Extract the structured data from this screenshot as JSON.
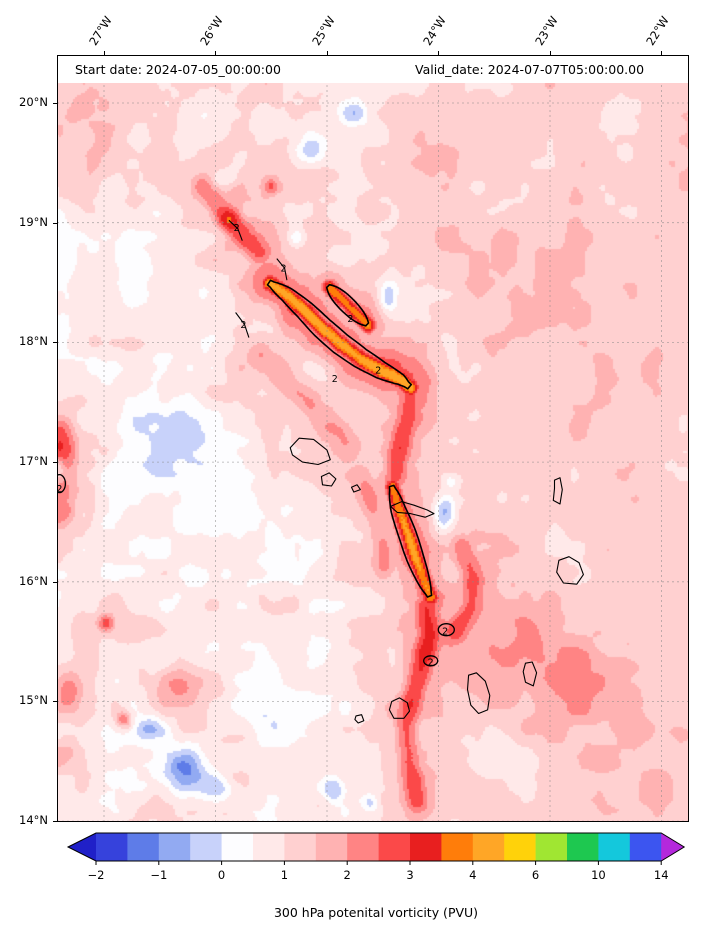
{
  "header": {
    "start_date": "Start date: 2024-07-05_00:00:00",
    "valid_date": "Valid_date: 2024-07-07T05:00:00.00"
  },
  "colorbar_label": "300 hPa potenital vorticity (PVU)",
  "axes": {
    "lon_ticks": [
      {
        "label": "27°W",
        "value": 27
      },
      {
        "label": "26°W",
        "value": 26
      },
      {
        "label": "25°W",
        "value": 25
      },
      {
        "label": "24°W",
        "value": 24
      },
      {
        "label": "23°W",
        "value": 23
      },
      {
        "label": "22°W",
        "value": 22
      }
    ],
    "lat_ticks": [
      {
        "label": "20°N",
        "value": 20
      },
      {
        "label": "19°N",
        "value": 19
      },
      {
        "label": "18°N",
        "value": 18
      },
      {
        "label": "17°N",
        "value": 17
      },
      {
        "label": "16°N",
        "value": 16
      },
      {
        "label": "15°N",
        "value": 15
      },
      {
        "label": "14°N",
        "value": 14
      }
    ]
  },
  "chart_data": {
    "type": "heatmap",
    "title": "300 hPa potential vorticity field over the Cape Verde region",
    "annotations": [
      "Start date: 2024-07-05_00:00:00",
      "Valid_date: 2024-07-07T05:00:00.00"
    ],
    "x_ticks": [
      "27°W",
      "26°W",
      "25°W",
      "24°W",
      "23°W",
      "22°W"
    ],
    "y_ticks": [
      "20°N",
      "19°N",
      "18°N",
      "17°N",
      "16°N",
      "15°N",
      "14°N"
    ],
    "extent": {
      "lon_west": 27.4215,
      "lon_east": 21.754,
      "lat_north": 20.401,
      "lat_south": 13.994
    },
    "grid": "dashed",
    "colorbar": {
      "label": "300 hPa potenital vorticity (PVU)",
      "tick_labels": [
        "−2",
        "−1",
        "0",
        "1",
        "2",
        "3",
        "4",
        "6",
        "10",
        "14"
      ],
      "tick_values": [
        -2,
        -1,
        0,
        1,
        2,
        3,
        4,
        6,
        10,
        14
      ],
      "tick_index": [
        0,
        2,
        4,
        6,
        8,
        10,
        12,
        14,
        16,
        18
      ],
      "levels": [
        -2,
        -1.5,
        -1,
        -0.5,
        0,
        0.5,
        1,
        1.5,
        2,
        2.5,
        3,
        3.5,
        4,
        5,
        6,
        8,
        10,
        12,
        14
      ],
      "colors": [
        "#3642dc",
        "#5e7ce8",
        "#92aaf2",
        "#c8d2fa",
        "#fdfdff",
        "#ffe9e9",
        "#ffd0d0",
        "#ffb2b2",
        "#ff8484",
        "#fb4949",
        "#e81f1f",
        "#ff7d0a",
        "#ffa626",
        "#ffd20a",
        "#a0e632",
        "#1ec850",
        "#14c8dc",
        "#3c55f0"
      ],
      "under_color": "#2020c8",
      "over_color": "#b428dc"
    },
    "field": {
      "units": "PVU",
      "base": {
        "offset": 0.7,
        "east_gradient": 0.45,
        "north_gradient": 0.12
      },
      "noise": {
        "east_damping": 0.45,
        "octaves": [
          {
            "scale": 26,
            "amp": 0.42,
            "seed": 7
          },
          {
            "scale": 64,
            "amp": 0.3,
            "seed": 13
          },
          {
            "scale": 12,
            "amp": 0.18,
            "seed": 29
          }
        ]
      },
      "blobs": [
        [
          25.51,
          19.31,
          1.6,
          0.05,
          0.05
        ],
        [
          25.9,
          19.05,
          1.2,
          0.07,
          0.07
        ],
        [
          25.15,
          19.6,
          -1.5,
          0.1,
          0.08
        ],
        [
          24.75,
          19.92,
          -1.3,
          0.09,
          0.07
        ],
        [
          25.92,
          19.38,
          -1.1,
          0.08,
          0.06
        ],
        [
          24.46,
          18.38,
          -1.4,
          0.06,
          0.09
        ],
        [
          23.95,
          16.6,
          -1.8,
          0.07,
          0.1
        ],
        [
          23.9,
          16.85,
          -0.9,
          0.06,
          0.05
        ],
        [
          26.3,
          14.45,
          -1.7,
          0.16,
          0.12
        ],
        [
          26.0,
          14.28,
          -1.3,
          0.1,
          0.08
        ],
        [
          26.6,
          14.78,
          -1.1,
          0.09,
          0.07
        ],
        [
          24.95,
          14.28,
          -1.5,
          0.07,
          0.07
        ],
        [
          24.62,
          14.15,
          -1.1,
          0.06,
          0.06
        ],
        [
          27.42,
          16.95,
          -0.8,
          0.04,
          0.06
        ],
        [
          26.99,
          15.66,
          1.6,
          0.05,
          0.05
        ],
        [
          26.83,
          14.86,
          1.8,
          0.05,
          0.05
        ],
        [
          27.35,
          15.05,
          1.5,
          0.12,
          0.15
        ],
        [
          27.4,
          14.55,
          1.0,
          0.12,
          0.12
        ],
        [
          26.3,
          17.2,
          -0.55,
          0.45,
          0.4
        ],
        [
          25.6,
          16.3,
          -0.5,
          0.4,
          0.35
        ],
        [
          26.8,
          18.6,
          -0.35,
          0.35,
          0.45
        ],
        [
          22.6,
          17.6,
          0.25,
          0.6,
          0.8
        ],
        [
          23.3,
          15.45,
          0.9,
          0.45,
          0.35
        ],
        [
          22.55,
          15.15,
          0.7,
          0.35,
          0.3
        ],
        [
          25.4,
          14.9,
          -0.5,
          0.3,
          0.25
        ],
        [
          26.35,
          15.15,
          1.2,
          0.14,
          0.1
        ],
        [
          26.9,
          19.9,
          0.5,
          0.4,
          0.3
        ],
        [
          27.2,
          19.5,
          0.45,
          0.3,
          0.4
        ],
        [
          25.28,
          18.88,
          -0.9,
          0.05,
          0.05
        ],
        [
          24.85,
          18.72,
          -0.7,
          0.08,
          0.06
        ],
        [
          23.4,
          18.5,
          0.3,
          0.5,
          0.6
        ],
        [
          25.05,
          15.55,
          -0.6,
          0.2,
          0.25
        ],
        [
          22.2,
          14.4,
          0.5,
          0.5,
          0.35
        ],
        [
          24.3,
          19.3,
          0.35,
          0.4,
          0.4
        ]
      ],
      "ridges": [
        {
          "pts": [
            [
              25.52,
              18.5
            ],
            [
              25.36,
              18.4
            ],
            [
              25.2,
              18.27
            ],
            [
              25.04,
              18.12
            ],
            [
              24.88,
              17.99
            ],
            [
              24.7,
              17.87
            ],
            [
              24.52,
              17.77
            ],
            [
              24.34,
              17.69
            ],
            [
              24.26,
              17.63
            ]
          ],
          "core_amp": 3.3,
          "core_sigma": 0.055,
          "halo_amp": 1.5,
          "halo_sigma": 0.17,
          "outline": true,
          "outline_halfwidth": 11
        },
        {
          "pts": [
            [
              24.99,
              18.47
            ],
            [
              24.88,
              18.37
            ],
            [
              24.76,
              18.26
            ],
            [
              24.64,
              18.15
            ]
          ],
          "core_amp": 2.9,
          "core_sigma": 0.05,
          "halo_amp": 1.1,
          "halo_sigma": 0.12,
          "outline": true,
          "outline_halfwidth": 8
        },
        {
          "pts": [
            [
              24.42,
              16.8
            ],
            [
              24.36,
              16.6
            ],
            [
              24.28,
              16.4
            ],
            [
              24.21,
              16.2
            ],
            [
              24.13,
              16.0
            ],
            [
              24.08,
              15.88
            ]
          ],
          "core_amp": 3.1,
          "core_sigma": 0.055,
          "halo_amp": 1.3,
          "halo_sigma": 0.15,
          "outline": true,
          "outline_halfwidth": 9
        },
        {
          "pts": [
            [
              24.27,
              17.58
            ],
            [
              24.3,
              17.38
            ],
            [
              24.34,
              17.18
            ],
            [
              24.38,
              16.98
            ],
            [
              24.41,
              16.84
            ]
          ],
          "core_amp": 1.7,
          "core_sigma": 0.09,
          "halo_amp": 0.8,
          "halo_sigma": 0.2,
          "outline": false,
          "outline_halfwidth": 0
        },
        {
          "pts": [
            [
              24.12,
              15.8
            ],
            [
              24.1,
              15.55
            ],
            [
              24.16,
              15.3
            ],
            [
              24.24,
              15.05
            ],
            [
              24.3,
              14.8
            ],
            [
              24.28,
              14.5
            ],
            [
              24.2,
              14.18
            ]
          ],
          "core_amp": 1.9,
          "core_sigma": 0.09,
          "halo_amp": 0.8,
          "halo_sigma": 0.22,
          "outline": false,
          "outline_halfwidth": 0
        },
        {
          "pts": [
            [
              26.12,
              19.3
            ],
            [
              25.95,
              19.1
            ],
            [
              25.78,
              18.92
            ],
            [
              25.62,
              18.76
            ]
          ],
          "core_amp": 1.5,
          "core_sigma": 0.09,
          "halo_amp": 0.6,
          "halo_sigma": 0.2,
          "outline": false,
          "outline_halfwidth": 0
        },
        {
          "pts": [
            [
              27.42,
              17.25
            ],
            [
              27.38,
              17.05
            ],
            [
              27.4,
              16.85
            ],
            [
              27.42,
              16.6
            ]
          ],
          "core_amp": 1.8,
          "core_sigma": 0.12,
          "halo_amp": 0.7,
          "halo_sigma": 0.25,
          "outline": false,
          "outline_halfwidth": 0
        },
        {
          "pts": [
            [
              25.6,
              17.9
            ],
            [
              25.4,
              17.7
            ],
            [
              25.2,
              17.52
            ],
            [
              25.0,
              17.32
            ],
            [
              24.8,
              17.12
            ]
          ],
          "core_amp": 1.1,
          "core_sigma": 0.1,
          "halo_amp": 0.5,
          "halo_sigma": 0.22,
          "outline": false,
          "outline_halfwidth": 0
        },
        {
          "pts": [
            [
              23.8,
              16.3
            ],
            [
              23.7,
              16.05
            ],
            [
              23.72,
              15.8
            ],
            [
              23.85,
              15.6
            ]
          ],
          "core_amp": 1.3,
          "core_sigma": 0.08,
          "halo_amp": 0.5,
          "halo_sigma": 0.18,
          "outline": false,
          "outline_halfwidth": 0
        },
        {
          "pts": [
            [
              24.7,
              16.9
            ],
            [
              24.6,
              16.65
            ],
            [
              24.52,
              16.4
            ],
            [
              24.5,
              16.15
            ]
          ],
          "core_amp": 1.2,
          "core_sigma": 0.09,
          "halo_amp": 0.5,
          "halo_sigma": 0.2,
          "outline": false,
          "outline_halfwidth": 0
        }
      ]
    },
    "contours": {
      "level": 2,
      "ellipses": [
        [
          23.93,
          15.6,
          8,
          6
        ],
        [
          24.07,
          15.34,
          7,
          5
        ],
        [
          27.4,
          16.82,
          6,
          9
        ]
      ],
      "arcs": [
        [
          [
            25.88,
            19.02
          ],
          [
            25.8,
            18.95
          ],
          [
            25.76,
            18.85
          ]
        ],
        [
          [
            25.82,
            18.25
          ],
          [
            25.74,
            18.15
          ],
          [
            25.7,
            18.04
          ]
        ],
        [
          [
            25.45,
            18.7
          ],
          [
            25.38,
            18.62
          ],
          [
            25.36,
            18.52
          ]
        ]
      ],
      "labels": [
        {
          "text": "2",
          "lon": 25.81,
          "lat": 18.96
        },
        {
          "text": "2",
          "lon": 25.75,
          "lat": 18.15
        },
        {
          "text": "2",
          "lon": 25.39,
          "lat": 18.62
        },
        {
          "text": "2",
          "lon": 24.93,
          "lat": 17.7
        },
        {
          "text": "2",
          "lon": 24.54,
          "lat": 17.77
        },
        {
          "text": "2",
          "lon": 24.79,
          "lat": 18.2
        },
        {
          "text": "2",
          "lon": 23.94,
          "lat": 15.59
        },
        {
          "text": "2",
          "lon": 24.07,
          "lat": 15.33
        },
        {
          "text": "2",
          "lon": 27.4,
          "lat": 16.78
        }
      ]
    },
    "coastlines": [
      [
        [
          25.33,
          17.12
        ],
        [
          25.25,
          17.2
        ],
        [
          25.12,
          17.19
        ],
        [
          25.0,
          17.1
        ],
        [
          24.97,
          17.02
        ],
        [
          25.08,
          16.98
        ],
        [
          25.22,
          17.0
        ],
        [
          25.31,
          17.06
        ]
      ],
      [
        [
          25.05,
          16.88
        ],
        [
          24.98,
          16.91
        ],
        [
          24.92,
          16.86
        ],
        [
          24.96,
          16.8
        ],
        [
          25.04,
          16.81
        ]
      ],
      [
        [
          24.78,
          16.79
        ],
        [
          24.73,
          16.81
        ],
        [
          24.7,
          16.77
        ],
        [
          24.76,
          16.75
        ]
      ],
      [
        [
          24.43,
          16.63
        ],
        [
          24.33,
          16.67
        ],
        [
          24.22,
          16.64
        ],
        [
          24.1,
          16.6
        ],
        [
          24.04,
          16.57
        ],
        [
          24.12,
          16.54
        ],
        [
          24.25,
          16.57
        ],
        [
          24.37,
          16.58
        ]
      ],
      [
        [
          22.96,
          16.85
        ],
        [
          22.91,
          16.87
        ],
        [
          22.89,
          16.77
        ],
        [
          22.91,
          16.65
        ],
        [
          22.97,
          16.68
        ],
        [
          22.96,
          16.78
        ]
      ],
      [
        [
          22.92,
          16.18
        ],
        [
          22.83,
          16.21
        ],
        [
          22.74,
          16.16
        ],
        [
          22.7,
          16.06
        ],
        [
          22.76,
          15.98
        ],
        [
          22.88,
          15.99
        ],
        [
          22.94,
          16.08
        ]
      ],
      [
        [
          23.22,
          15.32
        ],
        [
          23.16,
          15.33
        ],
        [
          23.12,
          15.24
        ],
        [
          23.15,
          15.13
        ],
        [
          23.22,
          15.16
        ],
        [
          23.24,
          15.25
        ]
      ],
      [
        [
          23.73,
          15.22
        ],
        [
          23.66,
          15.24
        ],
        [
          23.58,
          15.17
        ],
        [
          23.54,
          15.05
        ],
        [
          23.56,
          14.93
        ],
        [
          23.64,
          14.9
        ],
        [
          23.71,
          14.97
        ],
        [
          23.74,
          15.1
        ]
      ],
      [
        [
          24.42,
          15.0
        ],
        [
          24.35,
          15.03
        ],
        [
          24.28,
          14.99
        ],
        [
          24.26,
          14.92
        ],
        [
          24.31,
          14.86
        ],
        [
          24.4,
          14.86
        ],
        [
          24.44,
          14.93
        ]
      ],
      [
        [
          24.74,
          14.88
        ],
        [
          24.69,
          14.89
        ],
        [
          24.67,
          14.84
        ],
        [
          24.72,
          14.82
        ],
        [
          24.75,
          14.85
        ]
      ]
    ]
  }
}
